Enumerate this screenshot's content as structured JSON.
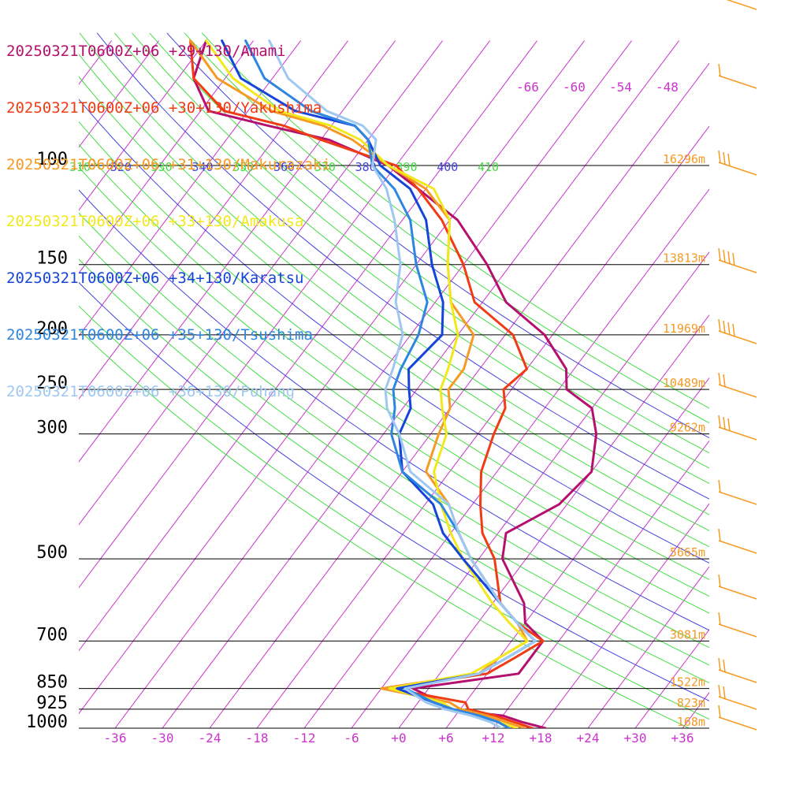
{
  "chart_data": {
    "type": "line",
    "chart_kind": "skew-T log-P sounding",
    "title": "",
    "xlabel": "",
    "ylabel": "",
    "colors": {
      "isotherm": "#cc33cc",
      "isentrope_theta": "#4444dd",
      "theta_e": "#44dd44",
      "pressure_line": "#000000",
      "height_label": "#f59a23",
      "wind_barb": "#f59a23",
      "temperature_label": "#cc33cc"
    },
    "xlim": [
      -40,
      40
    ],
    "pressure_range_hpa": [
      1000,
      70
    ],
    "pressure_levels": [
      {
        "p": 100,
        "label": "100",
        "height": "16296m"
      },
      {
        "p": 150,
        "label": "150",
        "height": "13813m"
      },
      {
        "p": 200,
        "label": "200",
        "height": "11969m"
      },
      {
        "p": 250,
        "label": "250",
        "height": "10489m"
      },
      {
        "p": 300,
        "label": "300",
        "height": "9262m"
      },
      {
        "p": 500,
        "label": "500",
        "height": "5665m"
      },
      {
        "p": 700,
        "label": "700",
        "height": "3081m"
      },
      {
        "p": 850,
        "label": "850",
        "height": "1522m"
      },
      {
        "p": 925,
        "label": "925",
        "height": "823m"
      },
      {
        "p": 1000,
        "label": "1000",
        "height": "168m"
      }
    ],
    "x_ticks": [
      {
        "t": -36,
        "label": "-36"
      },
      {
        "t": -30,
        "label": "-30"
      },
      {
        "t": -24,
        "label": "-24"
      },
      {
        "t": -18,
        "label": "-18"
      },
      {
        "t": -12,
        "label": "-12"
      },
      {
        "t": -6,
        "label": "-6"
      },
      {
        "t": 0,
        "label": "+0"
      },
      {
        "t": 6,
        "label": "+6"
      },
      {
        "t": 12,
        "label": "+12"
      },
      {
        "t": 18,
        "label": "+18"
      },
      {
        "t": 24,
        "label": "+24"
      },
      {
        "t": 30,
        "label": "+30"
      },
      {
        "t": 36,
        "label": "+36"
      }
    ],
    "upper_isotherm_labels": [
      "-66",
      "-60",
      "-54",
      "-48"
    ],
    "theta_labels": [
      {
        "label": "310",
        "type": "theta_e"
      },
      {
        "label": "320",
        "type": "theta"
      },
      {
        "label": "330",
        "type": "theta_e"
      },
      {
        "label": "340",
        "type": "theta"
      },
      {
        "label": "350",
        "type": "theta_e"
      },
      {
        "label": "360",
        "type": "theta"
      },
      {
        "label": "370",
        "type": "theta_e"
      },
      {
        "label": "380",
        "type": "theta"
      },
      {
        "label": "390",
        "type": "theta_e"
      },
      {
        "label": "400",
        "type": "theta"
      },
      {
        "label": "410",
        "type": "theta_e"
      }
    ],
    "wind_barb_count": 15,
    "series": [
      {
        "name": "20250321T0600Z+06 +29+130/Amami",
        "color": "#b5106e",
        "points": [
          [
            1000,
            18.6
          ],
          [
            975,
            15
          ],
          [
            950,
            12
          ],
          [
            925,
            4
          ],
          [
            900,
            3
          ],
          [
            850,
            -2
          ],
          [
            800,
            10
          ],
          [
            750,
            10
          ],
          [
            700,
            10
          ],
          [
            650,
            6
          ],
          [
            600,
            4
          ],
          [
            500,
            -3
          ],
          [
            450,
            -5
          ],
          [
            400,
            -1
          ],
          [
            350,
            0
          ],
          [
            300,
            -3
          ],
          [
            270,
            -6
          ],
          [
            250,
            -11
          ],
          [
            230,
            -13
          ],
          [
            200,
            -19
          ],
          [
            175,
            -27
          ],
          [
            150,
            -33
          ],
          [
            125,
            -41
          ],
          [
            110,
            -49
          ],
          [
            100,
            -55
          ],
          [
            90,
            -65
          ],
          [
            85,
            -74
          ],
          [
            80,
            -83
          ],
          [
            70,
            -88
          ],
          [
            60,
            -90
          ]
        ]
      },
      {
        "name": "20250321T0600Z+06 +30+130/Yakushima",
        "color": "#f03c14",
        "points": [
          [
            1000,
            17
          ],
          [
            975,
            14
          ],
          [
            950,
            11
          ],
          [
            925,
            7
          ],
          [
            900,
            6
          ],
          [
            850,
            -5
          ],
          [
            800,
            6
          ],
          [
            750,
            8
          ],
          [
            700,
            10
          ],
          [
            650,
            5
          ],
          [
            600,
            1
          ],
          [
            500,
            -4
          ],
          [
            450,
            -8
          ],
          [
            400,
            -11
          ],
          [
            350,
            -14
          ],
          [
            300,
            -16
          ],
          [
            270,
            -17
          ],
          [
            250,
            -19
          ],
          [
            230,
            -18
          ],
          [
            200,
            -23
          ],
          [
            175,
            -31
          ],
          [
            150,
            -36
          ],
          [
            125,
            -43
          ],
          [
            110,
            -49
          ],
          [
            100,
            -54
          ],
          [
            90,
            -66
          ],
          [
            85,
            -72
          ],
          [
            80,
            -81
          ],
          [
            70,
            -88
          ],
          [
            60,
            -92
          ]
        ]
      },
      {
        "name": "20250321T0600Z+06 +31+130/Makurazaki",
        "color": "#f59a23",
        "points": [
          [
            1000,
            16
          ],
          [
            975,
            13
          ],
          [
            950,
            10
          ],
          [
            925,
            6
          ],
          [
            900,
            4
          ],
          [
            850,
            -6
          ],
          [
            800,
            5
          ],
          [
            750,
            6
          ],
          [
            700,
            8
          ],
          [
            650,
            5
          ],
          [
            600,
            1
          ],
          [
            500,
            -7
          ],
          [
            450,
            -11
          ],
          [
            400,
            -15
          ],
          [
            350,
            -21
          ],
          [
            300,
            -23
          ],
          [
            270,
            -24
          ],
          [
            250,
            -26
          ],
          [
            230,
            -26
          ],
          [
            200,
            -28
          ],
          [
            175,
            -34
          ],
          [
            150,
            -38
          ],
          [
            125,
            -42
          ],
          [
            110,
            -48
          ],
          [
            100,
            -55
          ],
          [
            90,
            -62
          ],
          [
            85,
            -67
          ],
          [
            80,
            -75
          ],
          [
            70,
            -85
          ],
          [
            60,
            -92
          ]
        ]
      },
      {
        "name": "20250321T0600Z+06 +33+130/Amakusa",
        "color": "#f2e81e",
        "points": [
          [
            1000,
            15
          ],
          [
            975,
            12
          ],
          [
            950,
            9
          ],
          [
            925,
            5
          ],
          [
            900,
            3
          ],
          [
            850,
            -5
          ],
          [
            800,
            4
          ],
          [
            750,
            6
          ],
          [
            700,
            8
          ],
          [
            650,
            4
          ],
          [
            600,
            0
          ],
          [
            500,
            -8
          ],
          [
            450,
            -12
          ],
          [
            400,
            -16
          ],
          [
            350,
            -20
          ],
          [
            300,
            -22
          ],
          [
            270,
            -25
          ],
          [
            250,
            -27
          ],
          [
            230,
            -28
          ],
          [
            200,
            -30
          ],
          [
            175,
            -34
          ],
          [
            150,
            -38
          ],
          [
            125,
            -42
          ],
          [
            110,
            -47
          ],
          [
            100,
            -55
          ],
          [
            90,
            -61
          ],
          [
            85,
            -66
          ],
          [
            80,
            -74
          ],
          [
            70,
            -83
          ],
          [
            60,
            -90
          ]
        ]
      },
      {
        "name": "20250321T0600Z+06 +34+130/Karatsu",
        "color": "#1545d8",
        "points": [
          [
            1000,
            14
          ],
          [
            975,
            12
          ],
          [
            950,
            9
          ],
          [
            925,
            5
          ],
          [
            900,
            2
          ],
          [
            850,
            -4
          ],
          [
            800,
            5
          ],
          [
            750,
            7
          ],
          [
            700,
            9
          ],
          [
            650,
            5
          ],
          [
            600,
            1
          ],
          [
            500,
            -8
          ],
          [
            450,
            -13
          ],
          [
            400,
            -17
          ],
          [
            350,
            -24
          ],
          [
            300,
            -28
          ],
          [
            270,
            -29
          ],
          [
            250,
            -31
          ],
          [
            230,
            -33
          ],
          [
            200,
            -32
          ],
          [
            175,
            -35
          ],
          [
            150,
            -40
          ],
          [
            125,
            -45
          ],
          [
            110,
            -50
          ],
          [
            100,
            -56
          ],
          [
            90,
            -60
          ],
          [
            85,
            -63
          ],
          [
            80,
            -72
          ],
          [
            70,
            -82
          ],
          [
            60,
            -88
          ]
        ]
      },
      {
        "name": "20250321T0600Z+06 +35+130/Tsushima",
        "color": "#2e86e0",
        "points": [
          [
            1000,
            14
          ],
          [
            975,
            12
          ],
          [
            950,
            9
          ],
          [
            925,
            5
          ],
          [
            900,
            2
          ],
          [
            850,
            -3
          ],
          [
            800,
            5
          ],
          [
            750,
            7
          ],
          [
            700,
            9
          ],
          [
            650,
            5
          ],
          [
            600,
            1
          ],
          [
            500,
            -7
          ],
          [
            450,
            -11
          ],
          [
            400,
            -16
          ],
          [
            350,
            -24
          ],
          [
            300,
            -29
          ],
          [
            270,
            -31
          ],
          [
            250,
            -33
          ],
          [
            230,
            -34
          ],
          [
            200,
            -35
          ],
          [
            175,
            -37
          ],
          [
            150,
            -42
          ],
          [
            125,
            -47
          ],
          [
            110,
            -52
          ],
          [
            100,
            -57
          ],
          [
            90,
            -60
          ],
          [
            85,
            -63
          ],
          [
            80,
            -70
          ],
          [
            70,
            -79
          ],
          [
            60,
            -85
          ]
        ]
      },
      {
        "name": "20250321T0600Z+06 +36+130/Pohang",
        "color": "#9ec8f2",
        "points": [
          [
            1000,
            13
          ],
          [
            975,
            11
          ],
          [
            950,
            8
          ],
          [
            925,
            4
          ],
          [
            900,
            1
          ],
          [
            850,
            -3
          ],
          [
            800,
            5
          ],
          [
            750,
            7
          ],
          [
            700,
            9
          ],
          [
            650,
            5
          ],
          [
            600,
            1
          ],
          [
            500,
            -7
          ],
          [
            450,
            -11
          ],
          [
            400,
            -15
          ],
          [
            350,
            -23
          ],
          [
            300,
            -28
          ],
          [
            270,
            -32
          ],
          [
            250,
            -34
          ],
          [
            230,
            -35
          ],
          [
            200,
            -37
          ],
          [
            175,
            -41
          ],
          [
            150,
            -44
          ],
          [
            125,
            -49
          ],
          [
            110,
            -53
          ],
          [
            100,
            -57
          ],
          [
            90,
            -59
          ],
          [
            85,
            -62
          ],
          [
            80,
            -68
          ],
          [
            70,
            -76
          ],
          [
            60,
            -82
          ]
        ]
      }
    ]
  }
}
